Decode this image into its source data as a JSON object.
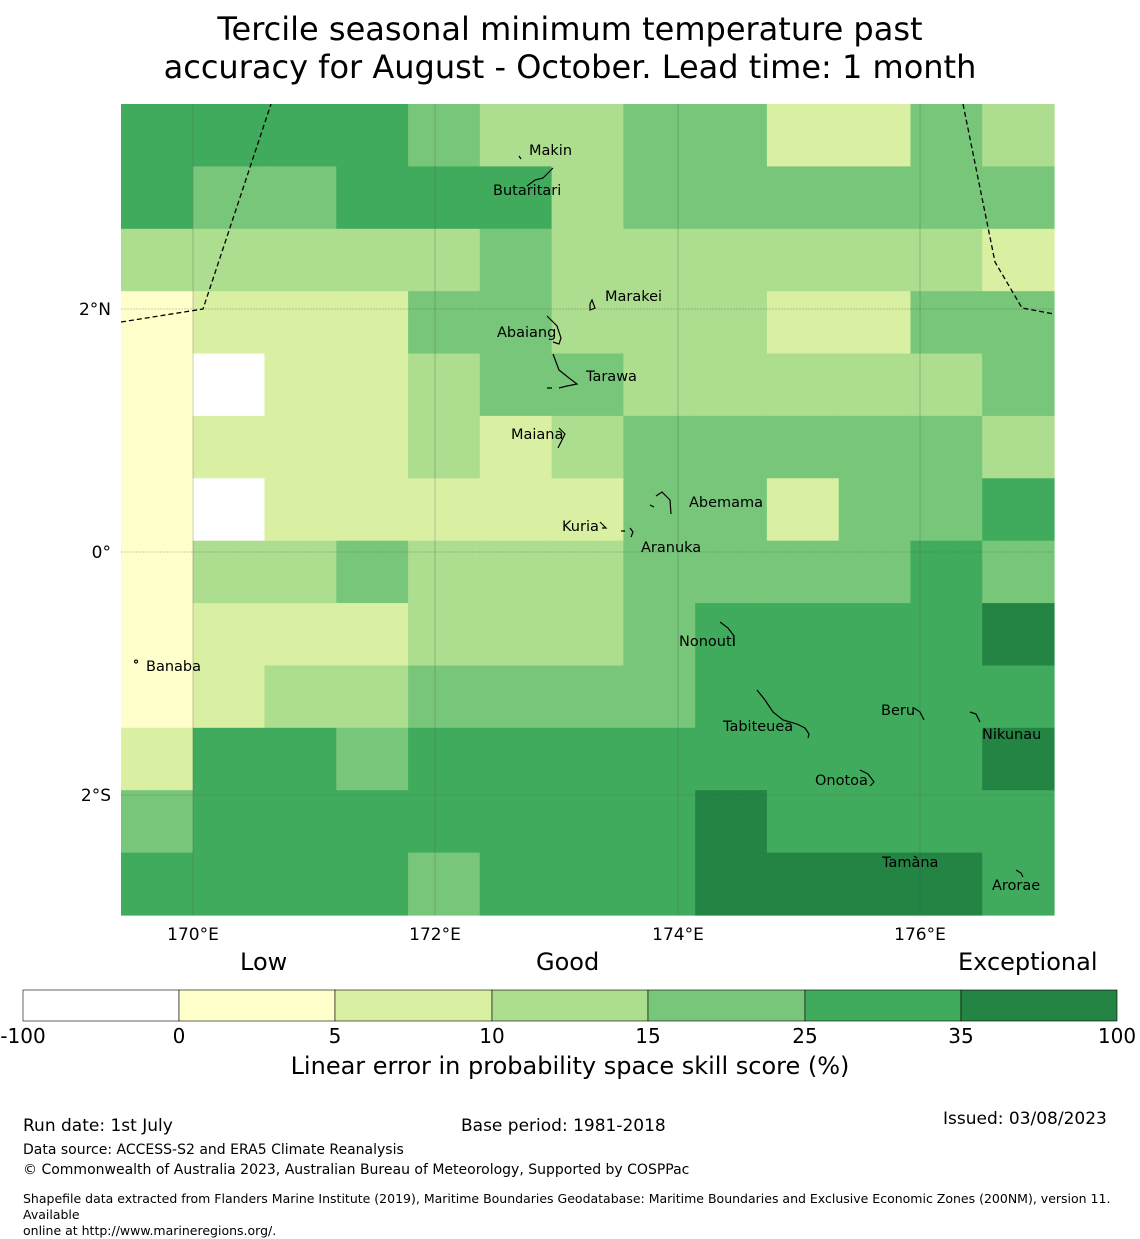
{
  "title_line1": "Tercile seasonal minimum temperature past",
  "title_line2": "accuracy for August - October. Lead time: 1 month",
  "map": {
    "lat_labels": [
      "2°N",
      "0°",
      "2°S"
    ],
    "lon_labels": [
      "170°E",
      "172°E",
      "174°E",
      "176°E"
    ],
    "grid_lon_start": 169.4,
    "grid_lon_step": 0.833,
    "grid_lat_start": 3.7,
    "grid_lat_step": -0.5555,
    "skill_grid": [
      [
        4,
        4,
        4,
        4,
        3,
        2,
        2,
        3,
        3,
        1,
        1,
        3,
        2
      ],
      [
        4,
        3,
        3,
        4,
        4,
        4,
        2,
        3,
        3,
        3,
        3,
        3,
        3
      ],
      [
        2,
        2,
        2,
        2,
        2,
        3,
        2,
        2,
        2,
        2,
        2,
        2,
        1
      ],
      [
        0,
        1,
        1,
        1,
        3,
        3,
        2,
        2,
        2,
        1,
        1,
        3,
        3
      ],
      [
        0,
        -1,
        1,
        1,
        2,
        3,
        3,
        2,
        2,
        2,
        2,
        2,
        3
      ],
      [
        0,
        1,
        1,
        1,
        2,
        1,
        2,
        3,
        3,
        3,
        3,
        3,
        2
      ],
      [
        0,
        -1,
        1,
        1,
        1,
        1,
        1,
        3,
        3,
        1,
        3,
        3,
        4
      ],
      [
        0,
        2,
        2,
        3,
        2,
        2,
        2,
        3,
        3,
        3,
        3,
        4,
        3
      ],
      [
        0,
        1,
        1,
        1,
        2,
        2,
        2,
        3,
        4,
        4,
        4,
        4,
        5
      ],
      [
        0,
        1,
        2,
        2,
        3,
        3,
        3,
        3,
        4,
        4,
        4,
        4,
        4
      ],
      [
        1,
        4,
        4,
        3,
        4,
        4,
        4,
        4,
        4,
        4,
        4,
        4,
        5
      ],
      [
        3,
        4,
        4,
        4,
        4,
        4,
        4,
        4,
        5,
        4,
        4,
        4,
        4
      ],
      [
        4,
        4,
        4,
        4,
        3,
        4,
        4,
        4,
        5,
        5,
        5,
        5,
        4
      ]
    ],
    "places": [
      "Makin",
      "Butaritari",
      "Marakei",
      "Abaiang",
      "Tarawa",
      "Maiana",
      "Abemama",
      "Kuria",
      "Aranuka",
      "Nonouti",
      "Banaba",
      "Beru",
      "Tabiteuea",
      "Nikunau",
      "Onotoa",
      "Tamana",
      "Arorae"
    ]
  },
  "colorbar": {
    "low_label": "Low",
    "good_label": "Good",
    "exceptional_label": "Exceptional",
    "bins": [
      {
        "from": "-100",
        "to": "0",
        "color": "#ffffff"
      },
      {
        "from": "0",
        "to": "5",
        "color": "#ffffcc"
      },
      {
        "from": "5",
        "to": "10",
        "color": "#d9f0a3"
      },
      {
        "from": "10",
        "to": "15",
        "color": "#addd8e"
      },
      {
        "from": "15",
        "to": "25",
        "color": "#78c679"
      },
      {
        "from": "25",
        "to": "35",
        "color": "#41ab5d"
      },
      {
        "from": "35",
        "to": "100",
        "color": "#238443"
      }
    ],
    "tick_labels": [
      "-100",
      "0",
      "5",
      "10",
      "15",
      "25",
      "35",
      "100"
    ],
    "title": "Linear error in probability space skill score (%)"
  },
  "footer": {
    "run_date": "Run date: 1st July",
    "base_period": "Base period: 1981-2018",
    "issued": "Issued: 03/08/2023",
    "data_source": "Data source: ACCESS-S2 and ERA5 Climate Reanalysis",
    "copyright": "© Commonwealth of Australia 2023, Australian Bureau of Meteorology, Supported by COSPPac",
    "shapefile_line1": "Shapefile data extracted from Flanders Marine Institute (2019), Maritime Boundaries Geodatabase: Maritime Boundaries and Exclusive Economic Zones (200NM), version 11. Available",
    "shapefile_line2": "online at http://www.marineregions.org/."
  }
}
